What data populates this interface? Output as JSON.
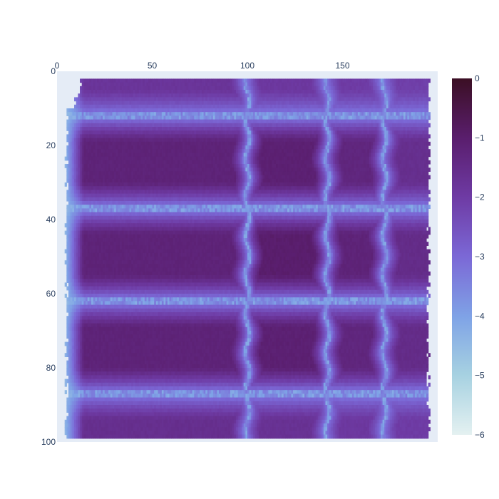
{
  "chart_data": {
    "type": "heatmap",
    "title": "",
    "xlabel": "",
    "ylabel": "",
    "x_range": [
      0,
      200
    ],
    "y_range": [
      0,
      100
    ],
    "y_reversed": true,
    "x_axis_side": "top",
    "x_ticks": [
      0,
      50,
      100,
      150
    ],
    "y_ticks": [
      0,
      20,
      40,
      60,
      80,
      100
    ],
    "colorbar": {
      "range": [
        -6,
        0
      ],
      "ticks": [
        0,
        -1,
        -2,
        -3,
        -4,
        -5,
        -6
      ],
      "colorscale": [
        [
          0.0,
          "#e4f1f1"
        ],
        [
          0.17,
          "#a6d1e1"
        ],
        [
          0.33,
          "#7fa3e6"
        ],
        [
          0.5,
          "#7b68d6"
        ],
        [
          0.67,
          "#6e3aa3"
        ],
        [
          0.83,
          "#5a1e6e"
        ],
        [
          1.0,
          "#3b0f24"
        ]
      ]
    },
    "grid": {
      "horizontal_boundaries_y": [
        12,
        37,
        62,
        87
      ],
      "vertical_boundaries_x": [
        100,
        142,
        172
      ],
      "cell_peak_values": [
        [
          -1.8,
          -1.9,
          -2.0,
          -2.1
        ],
        [
          -1.2,
          -1.1,
          -1.3,
          -1.6
        ],
        [
          -1.2,
          -1.0,
          -1.2,
          -1.5
        ],
        [
          -1.2,
          -1.1,
          -1.3,
          -1.5
        ],
        [
          -1.6,
          -1.7,
          -1.9,
          -2.0
        ]
      ],
      "boundary_value": -3.3,
      "left_edge_value": -4.5
    },
    "background_color": "#e5ecf6"
  }
}
